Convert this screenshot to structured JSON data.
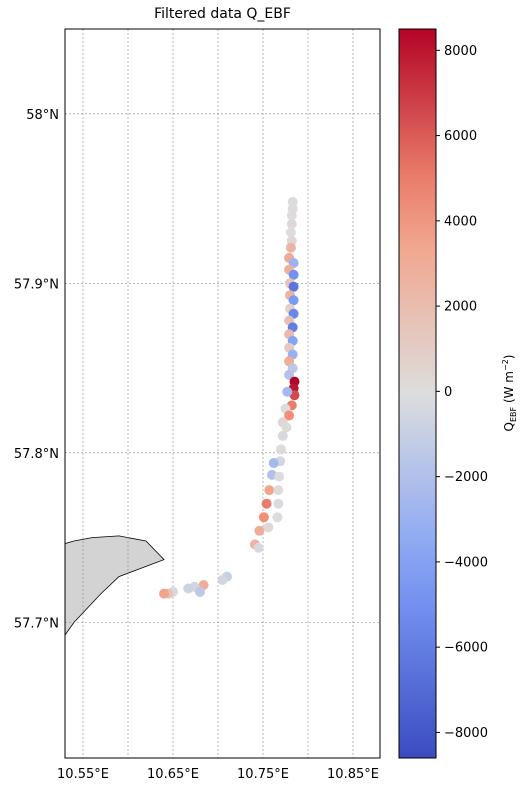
{
  "title": "Filtered data Q_EBF",
  "colorbar": {
    "label_main": "Q",
    "label_sub": "EBF",
    "label_unit": " (W m",
    "label_sup": "−2",
    "label_close": ")",
    "vmin": -8600,
    "vmax": 8500,
    "ticks": [
      "8000",
      "6000",
      "4000",
      "2000",
      "0",
      "−2000",
      "−4000",
      "−6000",
      "−8000"
    ],
    "tick_values": [
      8000,
      6000,
      4000,
      2000,
      0,
      -2000,
      -4000,
      -6000,
      -8000
    ],
    "colormap": "coolwarm"
  },
  "map": {
    "lon_range": [
      10.53,
      10.88
    ],
    "lat_range": [
      57.62,
      58.05
    ],
    "lon_ticks": [
      "10.55°E",
      "10.65°E",
      "10.75°E",
      "10.85°E"
    ],
    "lon_tick_values": [
      10.55,
      10.65,
      10.75,
      10.85
    ],
    "lat_ticks": [
      "58°N",
      "57.9°N",
      "57.8°N",
      "57.7°N"
    ],
    "lat_tick_values": [
      58.0,
      57.9,
      57.8,
      57.7
    ],
    "grid": true,
    "land_color": "#d3d3d3"
  },
  "chart_data": {
    "type": "scatter",
    "title": "Filtered data Q_EBF",
    "xlabel": "",
    "ylabel": "",
    "xlim": [
      10.53,
      10.88
    ],
    "ylim": [
      57.62,
      58.05
    ],
    "color_label": "Q_EBF (W m^-2)",
    "clim": [
      -8600,
      8500
    ],
    "points": [
      {
        "lon": 10.783,
        "lat": 57.948,
        "q": 0
      },
      {
        "lon": 10.783,
        "lat": 57.944,
        "q": 100
      },
      {
        "lon": 10.782,
        "lat": 57.94,
        "q": -100
      },
      {
        "lon": 10.782,
        "lat": 57.935,
        "q": 200
      },
      {
        "lon": 10.781,
        "lat": 57.93,
        "q": 0
      },
      {
        "lon": 10.782,
        "lat": 57.925,
        "q": 300
      },
      {
        "lon": 10.781,
        "lat": 57.921,
        "q": 2500
      },
      {
        "lon": 10.779,
        "lat": 57.915,
        "q": 3200
      },
      {
        "lon": 10.784,
        "lat": 57.912,
        "q": -3000
      },
      {
        "lon": 10.779,
        "lat": 57.908,
        "q": 2800
      },
      {
        "lon": 10.784,
        "lat": 57.905,
        "q": -5000
      },
      {
        "lon": 10.78,
        "lat": 57.9,
        "q": 1500
      },
      {
        "lon": 10.784,
        "lat": 57.898,
        "q": -6500
      },
      {
        "lon": 10.78,
        "lat": 57.893,
        "q": 2600
      },
      {
        "lon": 10.784,
        "lat": 57.89,
        "q": -4500
      },
      {
        "lon": 10.78,
        "lat": 57.885,
        "q": 800
      },
      {
        "lon": 10.784,
        "lat": 57.882,
        "q": -5500
      },
      {
        "lon": 10.779,
        "lat": 57.878,
        "q": 1800
      },
      {
        "lon": 10.783,
        "lat": 57.874,
        "q": -6000
      },
      {
        "lon": 10.779,
        "lat": 57.87,
        "q": 2200
      },
      {
        "lon": 10.783,
        "lat": 57.866,
        "q": -4000
      },
      {
        "lon": 10.779,
        "lat": 57.862,
        "q": 1200
      },
      {
        "lon": 10.783,
        "lat": 57.858,
        "q": -3000
      },
      {
        "lon": 10.779,
        "lat": 57.854,
        "q": 3000
      },
      {
        "lon": 10.783,
        "lat": 57.85,
        "q": -1500
      },
      {
        "lon": 10.779,
        "lat": 57.846,
        "q": -2000
      },
      {
        "lon": 10.785,
        "lat": 57.842,
        "q": 8500
      },
      {
        "lon": 10.784,
        "lat": 57.838,
        "q": 8000
      },
      {
        "lon": 10.785,
        "lat": 57.834,
        "q": 6500
      },
      {
        "lon": 10.777,
        "lat": 57.836,
        "q": -2500
      },
      {
        "lon": 10.782,
        "lat": 57.828,
        "q": 5000
      },
      {
        "lon": 10.775,
        "lat": 57.826,
        "q": 0
      },
      {
        "lon": 10.779,
        "lat": 57.822,
        "q": 4500
      },
      {
        "lon": 10.772,
        "lat": 57.818,
        "q": 300
      },
      {
        "lon": 10.776,
        "lat": 57.815,
        "q": 200
      },
      {
        "lon": 10.772,
        "lat": 57.81,
        "q": -300
      },
      {
        "lon": 10.77,
        "lat": 57.802,
        "q": 100
      },
      {
        "lon": 10.769,
        "lat": 57.795,
        "q": -500
      },
      {
        "lon": 10.762,
        "lat": 57.794,
        "q": -2500
      },
      {
        "lon": 10.76,
        "lat": 57.787,
        "q": -2000
      },
      {
        "lon": 10.768,
        "lat": 57.786,
        "q": 0
      },
      {
        "lon": 10.757,
        "lat": 57.778,
        "q": 3500
      },
      {
        "lon": 10.767,
        "lat": 57.778,
        "q": 100
      },
      {
        "lon": 10.754,
        "lat": 57.77,
        "q": 5000
      },
      {
        "lon": 10.767,
        "lat": 57.77,
        "q": -200
      },
      {
        "lon": 10.751,
        "lat": 57.762,
        "q": 4500
      },
      {
        "lon": 10.766,
        "lat": 57.762,
        "q": 0
      },
      {
        "lon": 10.746,
        "lat": 57.754,
        "q": 3000
      },
      {
        "lon": 10.756,
        "lat": 57.756,
        "q": 200
      },
      {
        "lon": 10.741,
        "lat": 57.746,
        "q": 2500
      },
      {
        "lon": 10.745,
        "lat": 57.744,
        "q": -300
      },
      {
        "lon": 10.71,
        "lat": 57.727,
        "q": -1000
      },
      {
        "lon": 10.705,
        "lat": 57.725,
        "q": -500
      },
      {
        "lon": 10.684,
        "lat": 57.722,
        "q": 3000
      },
      {
        "lon": 10.674,
        "lat": 57.721,
        "q": -500
      },
      {
        "lon": 10.667,
        "lat": 57.72,
        "q": -800
      },
      {
        "lon": 10.68,
        "lat": 57.718,
        "q": -1500
      },
      {
        "lon": 10.65,
        "lat": 57.718,
        "q": -300
      },
      {
        "lon": 10.645,
        "lat": 57.717,
        "q": 1500
      },
      {
        "lon": 10.64,
        "lat": 57.717,
        "q": 3500
      }
    ]
  }
}
